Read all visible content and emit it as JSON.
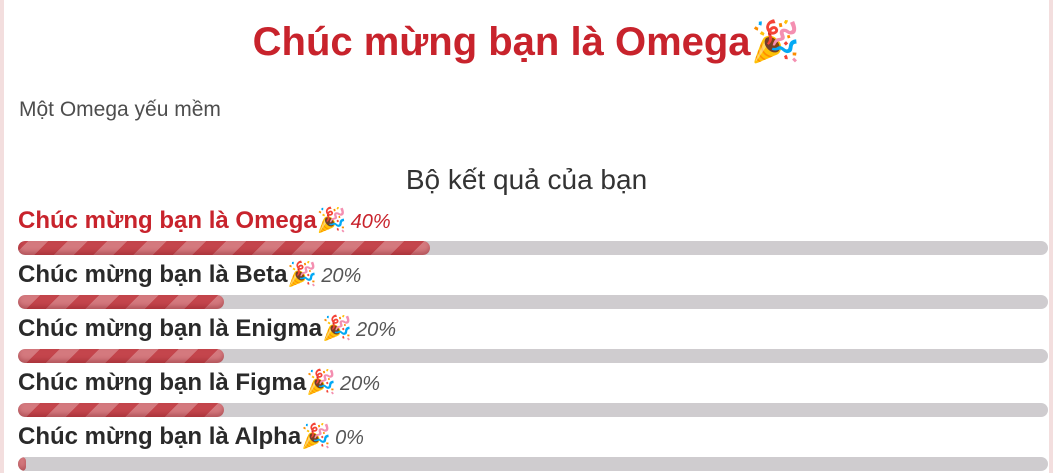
{
  "header": {
    "title": "Chúc mừng bạn là Omega",
    "title_emoji": "🎉"
  },
  "description": "Một Omega yếu mềm",
  "results_section": {
    "title": "Bộ kết quả của bạn",
    "items": [
      {
        "label": "Chúc mừng bạn là Omega",
        "emoji": "🎉",
        "percent_label": "40%",
        "value": 0.4,
        "highlighted": true
      },
      {
        "label": "Chúc mừng bạn là Beta",
        "emoji": "🎉",
        "percent_label": "20%",
        "value": 0.2,
        "highlighted": false
      },
      {
        "label": "Chúc mừng bạn là Enigma",
        "emoji": "🎉",
        "percent_label": "20%",
        "value": 0.2,
        "highlighted": false
      },
      {
        "label": "Chúc mừng bạn là Figma",
        "emoji": "🎉",
        "percent_label": "20%",
        "value": 0.2,
        "highlighted": false
      },
      {
        "label": "Chúc mừng bạn là Alpha",
        "emoji": "🎉",
        "percent_label": "0%",
        "value": 0.0,
        "highlighted": false
      }
    ]
  },
  "colors": {
    "accent": "#c8232c",
    "bar_fill": "#c4454c",
    "bar_track": "#cfcccf"
  }
}
